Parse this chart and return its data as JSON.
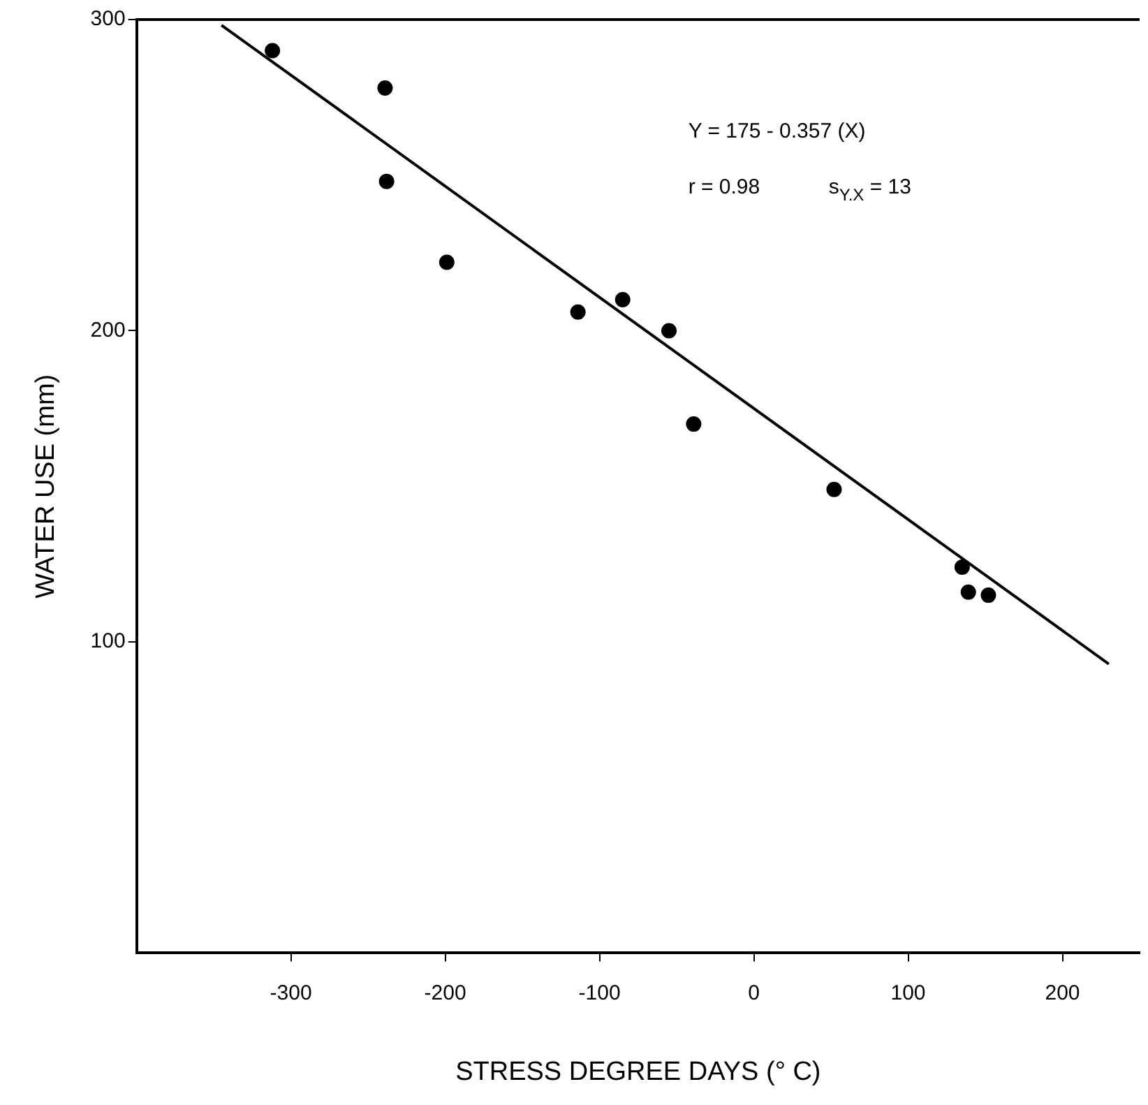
{
  "chart_data": {
    "type": "scatter",
    "xlabel": "STRESS DEGREE DAYS (° C)",
    "ylabel": "WATER USE (mm)",
    "xlim": [
      -400,
      250
    ],
    "xticks": [
      -300,
      -200,
      -100,
      0,
      100,
      200
    ],
    "ylim": [
      0,
      300
    ],
    "yticks": [
      100,
      200,
      300
    ],
    "grid": false,
    "legend": false,
    "series": [
      {
        "type": "scatter",
        "marker": "circle",
        "color": "#000000",
        "x": [
          -312,
          -239,
          -238,
          -199,
          -114,
          -85,
          -55,
          -39,
          52,
          135,
          139,
          152
        ],
        "values": [
          290,
          278,
          248,
          222,
          206,
          210,
          200,
          170,
          149,
          124,
          116,
          115
        ]
      },
      {
        "type": "line",
        "marker": "none",
        "color": "#000000",
        "x": [
          -345,
          230
        ],
        "values": [
          298.2,
          92.9
        ]
      }
    ],
    "annotations": [
      "Y = 175 - 0.357 (X)",
      "r = 0.98",
      "s$_{Y.X}$ = 13"
    ]
  }
}
